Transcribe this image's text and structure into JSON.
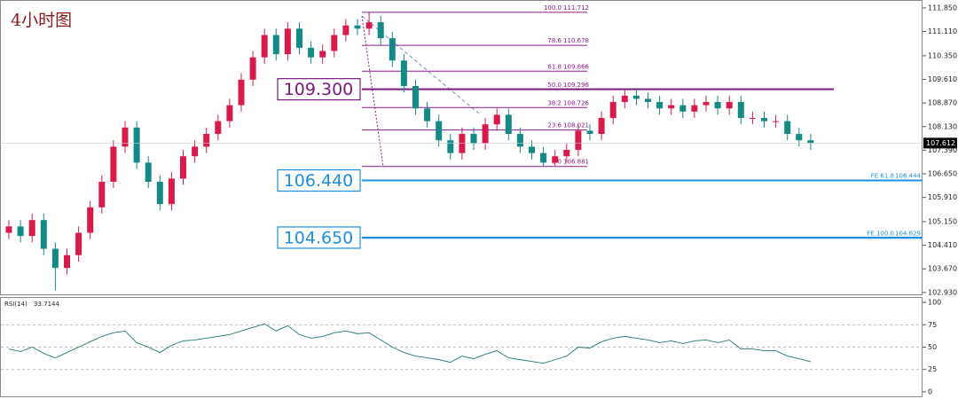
{
  "chart_data": [
    {
      "type": "candlestick",
      "title": "4小时图",
      "open": [
        104.8,
        105.0,
        104.7,
        105.2,
        104.3,
        103.7,
        104.1,
        104.8,
        105.6,
        106.4,
        107.5,
        108.1,
        107.0,
        106.4,
        105.7,
        106.5,
        107.2,
        107.5,
        107.9,
        108.3,
        108.8,
        109.6,
        110.3,
        111.0,
        110.4,
        111.2,
        110.6,
        110.3,
        110.5,
        111.0,
        111.3,
        111.2,
        111.4,
        110.9,
        110.2,
        109.4,
        108.7,
        108.3,
        107.7,
        107.3,
        107.9,
        107.6,
        108.2,
        108.5,
        107.9,
        107.5,
        107.3,
        107.0,
        107.2,
        107.4,
        108.0,
        107.9,
        108.4,
        108.9,
        109.1,
        109.0,
        108.9,
        108.7,
        108.8,
        108.6,
        108.8,
        108.9,
        108.7,
        108.9,
        108.4,
        108.4,
        108.3,
        108.3,
        107.9,
        107.7
      ],
      "high": [
        105.2,
        105.2,
        105.4,
        105.4,
        104.5,
        104.3,
        105.0,
        105.8,
        106.6,
        107.7,
        108.3,
        108.3,
        107.2,
        106.6,
        106.7,
        107.4,
        107.7,
        108.1,
        108.5,
        109.0,
        109.8,
        110.5,
        111.2,
        111.2,
        111.4,
        111.4,
        110.8,
        110.7,
        111.2,
        111.5,
        111.5,
        111.71,
        111.6,
        111.1,
        110.4,
        109.6,
        108.9,
        108.5,
        107.9,
        108.1,
        108.1,
        108.4,
        108.7,
        108.7,
        108.1,
        107.7,
        107.5,
        107.4,
        107.6,
        108.2,
        108.2,
        108.6,
        109.1,
        109.3,
        109.3,
        109.2,
        109.1,
        109.0,
        109.0,
        109.0,
        109.1,
        109.1,
        109.1,
        109.1,
        108.6,
        108.6,
        108.5,
        108.5,
        108.1,
        107.9
      ],
      "low": [
        104.6,
        104.5,
        104.5,
        104.1,
        103.0,
        103.5,
        103.9,
        104.6,
        105.4,
        106.2,
        107.3,
        106.8,
        106.2,
        105.5,
        105.5,
        106.3,
        107.0,
        107.3,
        107.7,
        108.1,
        108.6,
        109.4,
        110.1,
        110.2,
        110.2,
        110.4,
        110.1,
        110.1,
        110.3,
        110.8,
        111.0,
        111.0,
        110.7,
        110.0,
        109.2,
        108.5,
        108.1,
        107.5,
        107.1,
        107.1,
        107.4,
        107.4,
        108.0,
        107.7,
        107.3,
        107.1,
        106.88,
        106.9,
        107.0,
        107.2,
        107.7,
        107.7,
        108.2,
        108.7,
        108.8,
        108.7,
        108.5,
        108.5,
        108.4,
        108.4,
        108.6,
        108.5,
        108.5,
        108.2,
        108.2,
        108.1,
        108.1,
        107.7,
        107.5,
        107.4
      ],
      "close": [
        105.0,
        104.7,
        105.2,
        104.3,
        103.7,
        104.1,
        104.8,
        105.6,
        106.4,
        107.5,
        108.1,
        107.0,
        106.4,
        105.7,
        106.5,
        107.2,
        107.5,
        107.9,
        108.3,
        108.8,
        109.6,
        110.3,
        111.0,
        110.4,
        111.2,
        110.6,
        110.3,
        110.5,
        111.0,
        111.3,
        111.2,
        111.4,
        110.9,
        110.2,
        109.4,
        108.7,
        108.3,
        107.7,
        107.3,
        107.9,
        107.6,
        108.2,
        108.5,
        107.9,
        107.5,
        107.3,
        107.0,
        107.2,
        107.4,
        108.0,
        107.9,
        108.4,
        108.9,
        109.1,
        109.0,
        108.9,
        108.7,
        108.8,
        108.6,
        108.8,
        108.9,
        108.7,
        108.9,
        108.4,
        108.4,
        108.3,
        108.3,
        107.9,
        107.7,
        107.612
      ],
      "up_color": "#d81b4a",
      "down_color": "#138a86",
      "ylim": [
        102.87,
        112.07
      ],
      "yticks": [
        {
          "value": 111.85,
          "label": "111.850"
        },
        {
          "value": 111.11,
          "label": "111.110"
        },
        {
          "value": 110.35,
          "label": "110.350"
        },
        {
          "value": 109.61,
          "label": "109.610"
        },
        {
          "value": 108.87,
          "label": "108.870"
        },
        {
          "value": 108.13,
          "label": "108.130"
        },
        {
          "value": 107.39,
          "label": "107.390"
        },
        {
          "value": 106.65,
          "label": "106.650"
        },
        {
          "value": 105.91,
          "label": "105.910"
        },
        {
          "value": 105.15,
          "label": "105.150"
        },
        {
          "value": 104.41,
          "label": "104.410"
        },
        {
          "value": 103.67,
          "label": "103.670"
        },
        {
          "value": 102.93,
          "label": "102.930"
        }
      ],
      "current_price": 107.612,
      "fib_levels": [
        {
          "ratio": "100.0",
          "price": 111.712
        },
        {
          "ratio": "78.6",
          "price": 110.678
        },
        {
          "ratio": "61.8",
          "price": 109.866
        },
        {
          "ratio": "50.0",
          "price": 109.296
        },
        {
          "ratio": "38.2",
          "price": 108.726
        },
        {
          "ratio": "23.6",
          "price": 108.021
        },
        {
          "ratio": "0.0",
          "price": 106.881
        }
      ],
      "fib_color": "#8b1a8b",
      "fe_levels": [
        {
          "text": "FE 61.8",
          "price": 106.444
        },
        {
          "text": "FE 100.0",
          "price": 104.629
        }
      ],
      "fe_color": "#1e8fe0",
      "key_levels": [
        {
          "value": 109.3,
          "label": "109.300",
          "color": "#7b1a7b"
        },
        {
          "value": 106.44,
          "label": "106.440",
          "color": "#1e8fe0"
        },
        {
          "value": 104.65,
          "label": "104.650",
          "color": "#1e8fe0"
        }
      ]
    },
    {
      "type": "line",
      "label": "RSI(14)",
      "color": "#1f7a7a",
      "values": [
        48,
        45,
        50,
        43,
        38,
        44,
        50,
        56,
        62,
        66,
        68,
        55,
        50,
        44,
        52,
        57,
        58,
        60,
        62,
        64,
        68,
        72,
        76,
        68,
        74,
        64,
        60,
        62,
        66,
        68,
        65,
        66,
        58,
        50,
        44,
        40,
        38,
        36,
        33,
        40,
        37,
        42,
        46,
        38,
        36,
        34,
        32,
        36,
        40,
        50,
        49,
        56,
        60,
        62,
        60,
        58,
        55,
        57,
        54,
        57,
        58,
        55,
        58,
        48,
        48,
        46,
        46,
        40,
        37,
        33.7144
      ],
      "ylim": [
        -5,
        105
      ],
      "yticks": [
        100,
        75,
        50,
        25,
        0
      ],
      "grid_ticks": [
        75,
        50,
        25
      ]
    }
  ]
}
